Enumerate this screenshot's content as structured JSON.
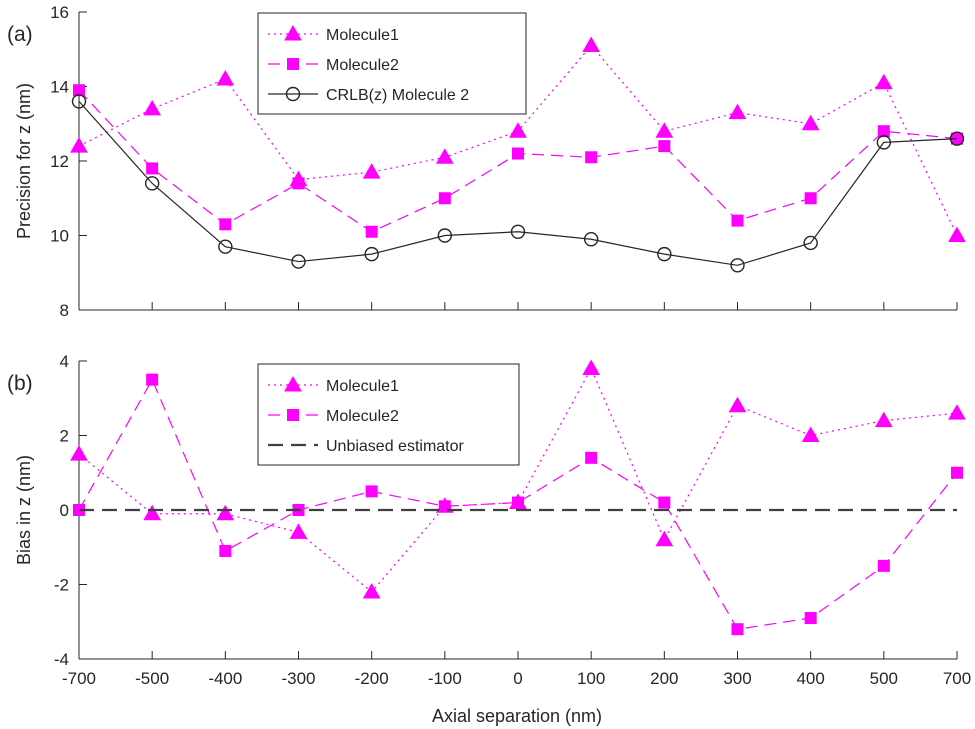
{
  "chart_data": [
    {
      "type": "line",
      "panel_label": "(a)",
      "ylabel": "Precision for z (nm)",
      "xlabel": "",
      "x": [
        -700,
        -500,
        -400,
        -300,
        -200,
        -100,
        0,
        100,
        200,
        300,
        400,
        500,
        700
      ],
      "x_tick_labels": [
        "-700",
        "-500",
        "-400",
        "-300",
        "-200",
        "-100",
        "0",
        "100",
        "200",
        "300",
        "400",
        "500",
        "700"
      ],
      "ylim": [
        8,
        16
      ],
      "y_ticks": [
        8,
        10,
        12,
        14,
        16
      ],
      "y_tick_labels": [
        "8",
        "10",
        "12",
        "14",
        "16"
      ],
      "grid": false,
      "legend_position": "top-center",
      "series": [
        {
          "name": "Molecule1",
          "color": "#ff00ff",
          "line": "dotted",
          "marker": "triangle",
          "values": [
            12.4,
            13.4,
            14.2,
            11.5,
            11.7,
            12.1,
            12.8,
            15.1,
            12.8,
            13.3,
            13.0,
            14.1,
            10.0
          ]
        },
        {
          "name": "Molecule2",
          "color": "#ff00ff",
          "line": "dashed",
          "marker": "square",
          "values": [
            13.9,
            11.8,
            10.3,
            11.4,
            10.1,
            11.0,
            12.2,
            12.1,
            12.4,
            10.4,
            11.0,
            12.8,
            12.6
          ]
        },
        {
          "name": "CRLB(z) Molecule 2",
          "color": "#262626",
          "line": "solid",
          "marker": "circle",
          "values": [
            13.6,
            11.4,
            9.7,
            9.3,
            9.5,
            10.0,
            10.1,
            9.9,
            9.5,
            9.2,
            9.8,
            12.5,
            12.6
          ]
        }
      ]
    },
    {
      "type": "line",
      "panel_label": "(b)",
      "ylabel": "Bias in z (nm)",
      "xlabel": "Axial separation (nm)",
      "x": [
        -700,
        -500,
        -400,
        -300,
        -200,
        -100,
        0,
        100,
        200,
        300,
        400,
        500,
        700
      ],
      "x_tick_labels": [
        "-700",
        "-500",
        "-400",
        "-300",
        "-200",
        "-100",
        "0",
        "100",
        "200",
        "300",
        "400",
        "500",
        "700"
      ],
      "ylim": [
        -4,
        4
      ],
      "y_ticks": [
        -4,
        -2,
        0,
        2,
        4
      ],
      "y_tick_labels": [
        "-4",
        "-2",
        "0",
        "2",
        "4"
      ],
      "grid": false,
      "legend_position": "top-center",
      "series": [
        {
          "name": "Molecule1",
          "color": "#ff00ff",
          "line": "dotted",
          "marker": "triangle",
          "values": [
            1.5,
            -0.1,
            -0.1,
            -0.6,
            -2.2,
            0.1,
            0.2,
            3.8,
            -0.8,
            2.8,
            2.0,
            2.4,
            2.6
          ]
        },
        {
          "name": "Molecule2",
          "color": "#ff00ff",
          "line": "dashed",
          "marker": "square",
          "values": [
            0.0,
            3.5,
            -1.1,
            0.0,
            0.5,
            0.1,
            0.2,
            1.4,
            0.2,
            -3.2,
            -2.9,
            -1.5,
            1.0
          ]
        },
        {
          "name": "Unbiased estimator",
          "color": "#404040",
          "line": "longdash",
          "marker": "none",
          "values": [
            0,
            0,
            0,
            0,
            0,
            0,
            0,
            0,
            0,
            0,
            0,
            0,
            0
          ]
        }
      ]
    }
  ]
}
